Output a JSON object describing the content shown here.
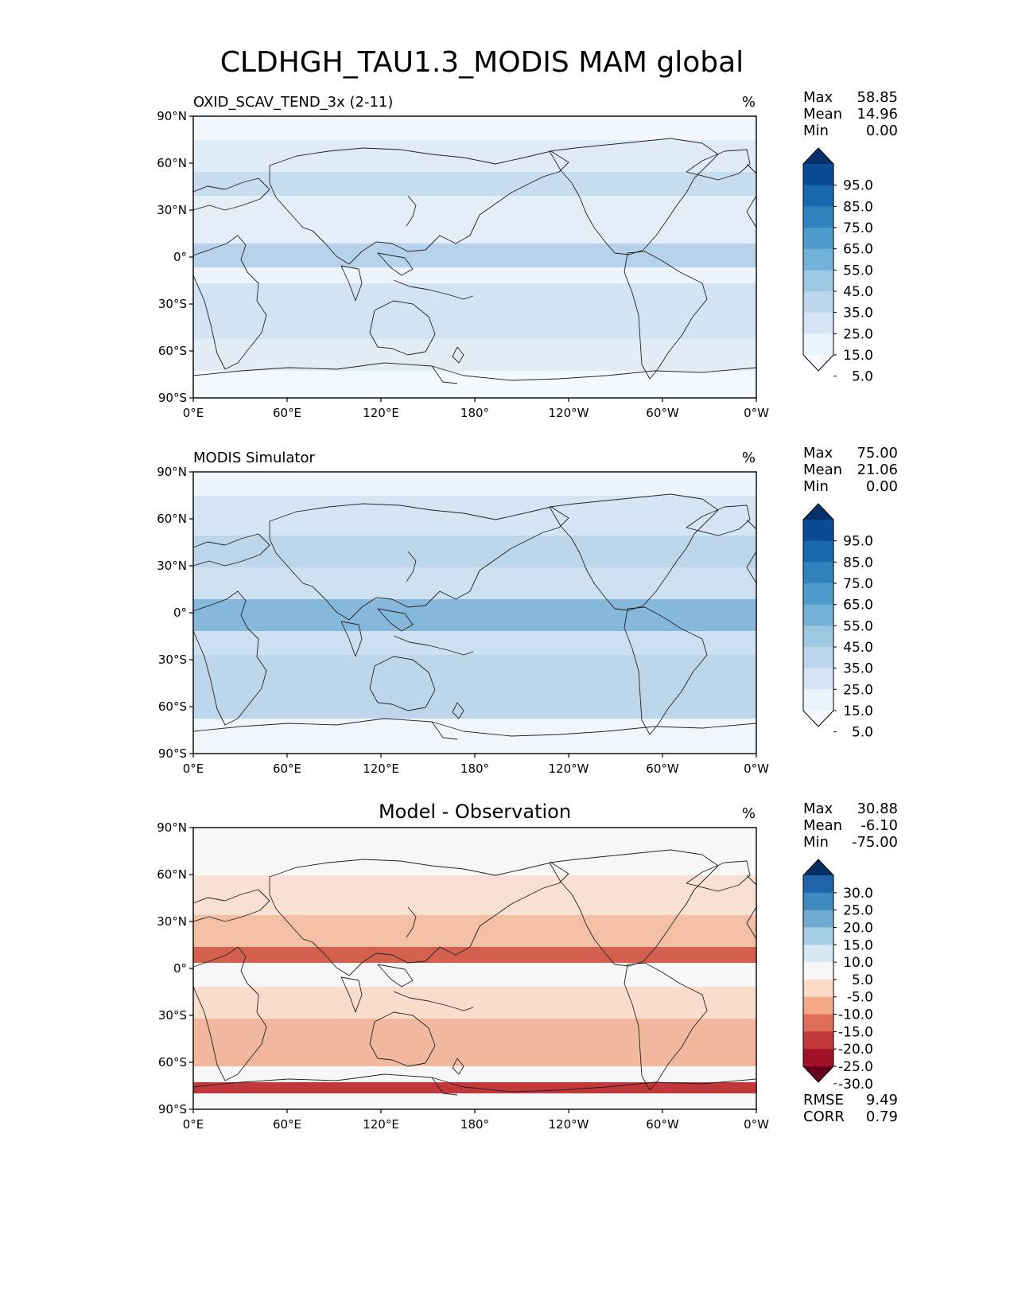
{
  "title": "CLDHGH_TAU1.3_MODIS MAM global",
  "axes": {
    "lat_ticks": [
      "90°N",
      "60°N",
      "30°N",
      "0°",
      "30°S",
      "60°S",
      "90°S"
    ],
    "lon_ticks": [
      "0°E",
      "60°E",
      "120°E",
      "180°",
      "120°W",
      "60°W",
      "0°W"
    ]
  },
  "panels": [
    {
      "id": "test",
      "title": "OXID_SCAV_TEND_3x (2-11)",
      "title_pos": "left",
      "units": "%",
      "stats": [
        {
          "label": "Max",
          "value": "58.85"
        },
        {
          "label": "Mean",
          "value": "14.96"
        },
        {
          "label": "Min",
          "value": "0.00"
        }
      ],
      "colorbar": {
        "labels": [
          "95.0",
          "85.0",
          "75.0",
          "65.0",
          "55.0",
          "45.0",
          "35.0",
          "25.0",
          "15.0",
          "5.0"
        ],
        "colors": [
          "#08306b",
          "#0b4b94",
          "#1b69ad",
          "#3282be",
          "#4f9bcb",
          "#72b2d8",
          "#9cc8e2",
          "#bcd7eb",
          "#d6e5f4",
          "#ebf3fb",
          "#f7fbff"
        ]
      }
    },
    {
      "id": "ref",
      "title": "MODIS Simulator",
      "title_pos": "left",
      "units": "%",
      "stats": [
        {
          "label": "Max",
          "value": "75.00"
        },
        {
          "label": "Mean",
          "value": "21.06"
        },
        {
          "label": "Min",
          "value": "0.00"
        }
      ],
      "colorbar": {
        "labels": [
          "95.0",
          "85.0",
          "75.0",
          "65.0",
          "55.0",
          "45.0",
          "35.0",
          "25.0",
          "15.0",
          "5.0"
        ],
        "colors": [
          "#08306b",
          "#0b4b94",
          "#1b69ad",
          "#3282be",
          "#4f9bcb",
          "#72b2d8",
          "#9cc8e2",
          "#bcd7eb",
          "#d6e5f4",
          "#ebf3fb",
          "#f7fbff"
        ]
      }
    },
    {
      "id": "diff",
      "title": "Model - Observation",
      "title_pos": "center",
      "units": "%",
      "stats": [
        {
          "label": "Max",
          "value": "30.88"
        },
        {
          "label": "Mean",
          "value": "-6.10"
        },
        {
          "label": "Min",
          "value": "-75.00"
        }
      ],
      "footer_stats": [
        {
          "label": "RMSE",
          "value": "9.49"
        },
        {
          "label": "CORR",
          "value": "0.79"
        }
      ],
      "colorbar": {
        "labels": [
          "30.0",
          "25.0",
          "20.0",
          "15.0",
          "10.0",
          "5.0",
          "-5.0",
          "-10.0",
          "-15.0",
          "-20.0",
          "-25.0",
          "-30.0"
        ],
        "colors": [
          "#053061",
          "#1f63a8",
          "#3d8bc0",
          "#6fabd0",
          "#a7cfe4",
          "#d6e8f1",
          "#f7f7f7",
          "#fbdac8",
          "#f3a886",
          "#dd6f5a",
          "#c1373a",
          "#a11228",
          "#67001f"
        ]
      }
    }
  ]
}
